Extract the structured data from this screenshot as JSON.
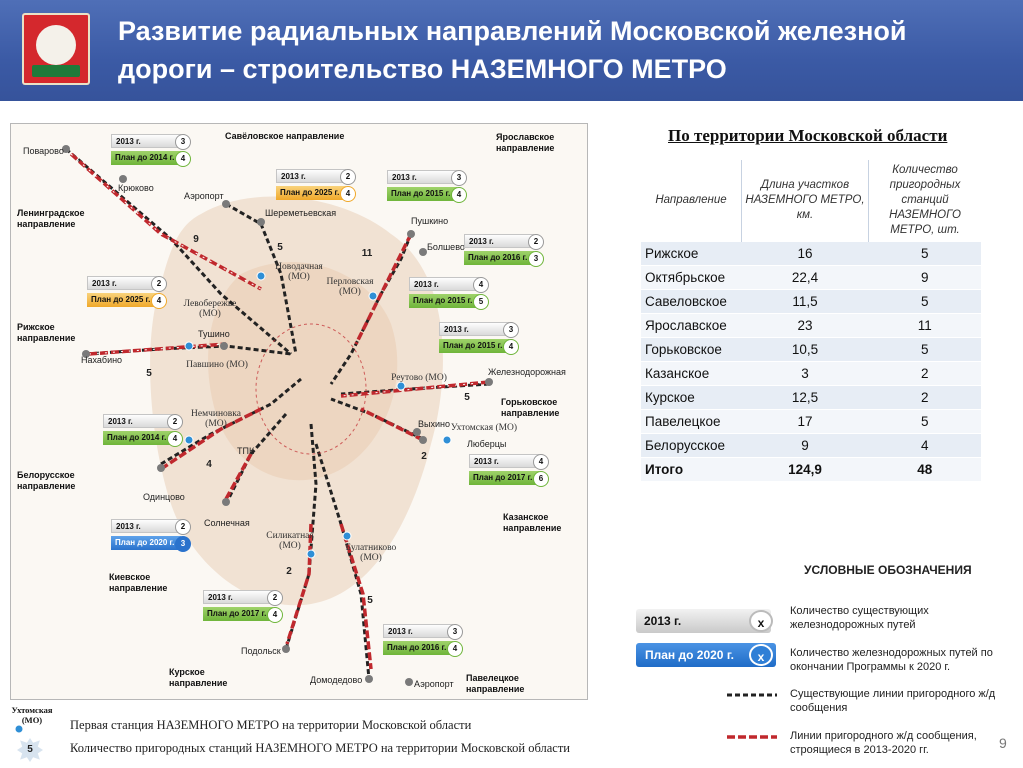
{
  "header": {
    "title": "Развитие радиальных направлений Московской железной дороги – строительство НАЗЕМНОГО МЕТРО"
  },
  "map": {
    "directions": [
      {
        "key": "savelovo",
        "label": "Савёловское направление"
      },
      {
        "key": "yaroslavl",
        "label": "Ярославское направление"
      },
      {
        "key": "leningrad",
        "label": "Ленинградское направление"
      },
      {
        "key": "riga",
        "label": "Рижское направление"
      },
      {
        "key": "gorky",
        "label": "Горьковское направление"
      },
      {
        "key": "belarus",
        "label": "Белорусское направление"
      },
      {
        "key": "kazan",
        "label": "Казанское направление"
      },
      {
        "key": "kiev",
        "label": "Киевское направление"
      },
      {
        "key": "kursk",
        "label": "Курское направление"
      },
      {
        "key": "paveletsky",
        "label": "Павелецкое направление"
      }
    ],
    "stations": {
      "povarovo": "Поварово",
      "kryukovo": "Крюково",
      "airport1": "Аэропорт",
      "sheremetyevo": "Шереметьевская",
      "pushkino": "Пушкино",
      "bolshevo": "Болшево",
      "novodachnaya": "Новодачная (МО)",
      "perlovskaya": "Перловская (МО)",
      "levoberezhye": "Левобережье (МО)",
      "tushino": "Тушино",
      "pavshino": "Павшино (МО)",
      "nakhabino": "Нахабино",
      "reutovo": "Реутово (МО)",
      "zheleznodorozhnaya": "Железнодорожная",
      "nemchinovka": "Немчиновка (МО)",
      "vykhino": "Выхино",
      "ukhtomskaya": "Ухтомская (МО)",
      "lyubertsy": "Люберцы",
      "tpk": "ТПК",
      "odintsovo": "Одинцово",
      "solnechnaya": "Солнечная",
      "silikatnaya": "Силикатная (МО)",
      "bulatnikovo": "Булатниково (МО)",
      "podolsk": "Подольск",
      "domodedovo": "Домодедово",
      "airport2": "Аэропорт"
    },
    "badges": [
      {
        "key": "sav",
        "year": "2013 г.",
        "yv": "3",
        "plan": "План до 2014 г.",
        "pv": "4",
        "color": "green"
      },
      {
        "key": "air",
        "year": "2013 г.",
        "yv": "2",
        "plan": "План до 2025 г.",
        "pv": "4",
        "color": "orange"
      },
      {
        "key": "yar1",
        "year": "2013 г.",
        "yv": "3",
        "plan": "План до 2015 г.",
        "pv": "4",
        "color": "green"
      },
      {
        "key": "yar2",
        "year": "2013 г.",
        "yv": "2",
        "plan": "План до 2016 г.",
        "pv": "3",
        "color": "green"
      },
      {
        "key": "riga",
        "year": "2013 г.",
        "yv": "2",
        "plan": "План до 2025 г.",
        "pv": "4",
        "color": "orange"
      },
      {
        "key": "perl",
        "year": "2013 г.",
        "yv": "4",
        "plan": "План до 2015 г.",
        "pv": "5",
        "color": "green"
      },
      {
        "key": "reut",
        "year": "2013 г.",
        "yv": "3",
        "plan": "План до 2015 г.",
        "pv": "4",
        "color": "green"
      },
      {
        "key": "bel",
        "year": "2013 г.",
        "yv": "2",
        "plan": "План до 2014 г.",
        "pv": "4",
        "color": "green"
      },
      {
        "key": "kaz",
        "year": "2013 г.",
        "yv": "4",
        "plan": "План до 2017 г.",
        "pv": "6",
        "color": "green"
      },
      {
        "key": "kiev",
        "year": "2013 г.",
        "yv": "2",
        "plan": "План до 2020 г.",
        "pv": "3",
        "color": "blue"
      },
      {
        "key": "kur",
        "year": "2013 г.",
        "yv": "2",
        "plan": "План до 2017 г.",
        "pv": "4",
        "color": "green"
      },
      {
        "key": "pav",
        "year": "2013 г.",
        "yv": "3",
        "plan": "План до 2016 г.",
        "pv": "4",
        "color": "green"
      }
    ],
    "stars": {
      "s9": "9",
      "s5a": "5",
      "s11": "11",
      "s5b": "5",
      "s5c": "5",
      "s4": "4",
      "s2a": "2",
      "s2b": "2",
      "s5d": "5"
    }
  },
  "table": {
    "title": "По территории Московской области",
    "headers": [
      "Направление",
      "Длина участков НАЗЕМНОГО МЕТРО, км.",
      "Количество пригородных станций НАЗЕМНОГО МЕТРО, шт."
    ],
    "rows": [
      [
        "Рижское",
        "16",
        "5"
      ],
      [
        "Октябрьское",
        "22,4",
        "9"
      ],
      [
        "Савеловское",
        "11,5",
        "5"
      ],
      [
        "Ярославское",
        "23",
        "11"
      ],
      [
        "Горьковское",
        "10,5",
        "5"
      ],
      [
        "Казанское",
        "3",
        "2"
      ],
      [
        "Курское",
        "12,5",
        "2"
      ],
      [
        "Павелецкое",
        "17",
        "5"
      ],
      [
        "Белорусское",
        "9",
        "4"
      ]
    ],
    "total": [
      "Итого",
      "124,9",
      "48"
    ]
  },
  "legend": {
    "title": "УСЛОВНЫЕ ОБОЗНАЧЕНИЯ",
    "box1": "2013 г.",
    "box2": "План до 2020 г.",
    "x": "х",
    "t1": "Количество существующих железнодорожных путей",
    "t2": "Количество железнодорожных путей по окончании Программы к 2020 г.",
    "t3": "Существующие линии пригородного ж/д сообщения",
    "t4": "Линии пригородного ж/д сообщения, строящиеся в 2013-2020 гг."
  },
  "bottom": {
    "station_label": "Ухтомская (МО)",
    "star_value": "5",
    "note1": "Первая станция НАЗЕМНОГО МЕТРО на территории Московской области",
    "note2": "Количество пригородных станций НАЗЕМНОГО МЕТРО на территории Московской области"
  },
  "page_number": "9",
  "colors": {
    "header": "#3b5aa5",
    "line_new": "#c0282d",
    "line_exist": "#222222",
    "plan_green": "#7dc243",
    "plan_orange": "#f2b134",
    "plan_blue": "#2f7fd6"
  }
}
